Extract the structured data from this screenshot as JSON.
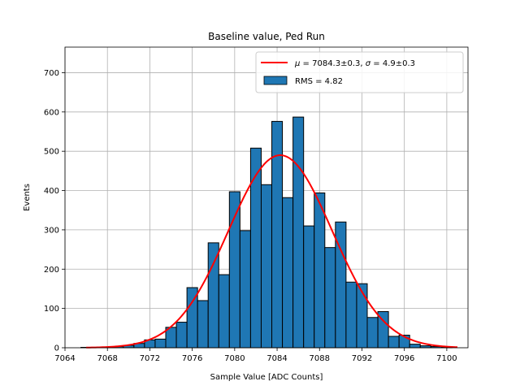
{
  "chart_data": {
    "type": "bar",
    "title": "Baseline value, Ped Run",
    "xlabel": "Sample Value [ADC Counts]",
    "ylabel": "Events",
    "xlim": [
      7064,
      7102
    ],
    "ylim": [
      0,
      765
    ],
    "xticks": [
      7064,
      7068,
      7072,
      7076,
      7080,
      7084,
      7088,
      7092,
      7096,
      7100
    ],
    "yticks": [
      0,
      100,
      200,
      300,
      400,
      500,
      600,
      700
    ],
    "grid": true,
    "legend_position": "top-right",
    "bin_width": 1,
    "bins": [
      {
        "x": 7066,
        "y": 1
      },
      {
        "x": 7067,
        "y": 1
      },
      {
        "x": 7068,
        "y": 2
      },
      {
        "x": 7069,
        "y": 3
      },
      {
        "x": 7070,
        "y": 6
      },
      {
        "x": 7071,
        "y": 11
      },
      {
        "x": 7072,
        "y": 20
      },
      {
        "x": 7073,
        "y": 22
      },
      {
        "x": 7074,
        "y": 52
      },
      {
        "x": 7075,
        "y": 65
      },
      {
        "x": 7076,
        "y": 153
      },
      {
        "x": 7077,
        "y": 120
      },
      {
        "x": 7078,
        "y": 267
      },
      {
        "x": 7079,
        "y": 186
      },
      {
        "x": 7080,
        "y": 397
      },
      {
        "x": 7081,
        "y": 298
      },
      {
        "x": 7082,
        "y": 508
      },
      {
        "x": 7083,
        "y": 415
      },
      {
        "x": 7084,
        "y": 576
      },
      {
        "x": 7085,
        "y": 382
      },
      {
        "x": 7086,
        "y": 587
      },
      {
        "x": 7087,
        "y": 310
      },
      {
        "x": 7088,
        "y": 394
      },
      {
        "x": 7089,
        "y": 255
      },
      {
        "x": 7090,
        "y": 320
      },
      {
        "x": 7091,
        "y": 167
      },
      {
        "x": 7092,
        "y": 163
      },
      {
        "x": 7093,
        "y": 77
      },
      {
        "x": 7094,
        "y": 92
      },
      {
        "x": 7095,
        "y": 29
      },
      {
        "x": 7096,
        "y": 32
      },
      {
        "x": 7097,
        "y": 9
      },
      {
        "x": 7098,
        "y": 5
      },
      {
        "x": 7099,
        "y": 3
      },
      {
        "x": 7100,
        "y": 1
      }
    ],
    "fit": {
      "mu": 7084.3,
      "sigma": 4.9,
      "amplitude": 490,
      "x_range": [
        7066,
        7101
      ]
    },
    "series": [
      {
        "name": "$\\mu = 7084.3{\\pm}0.3$, $\\sigma = 4.9{\\pm}0.3$",
        "type": "line",
        "color": "#ff0000"
      },
      {
        "name": "RMS = 4.82",
        "type": "bar",
        "color": "#1f77b4"
      }
    ]
  },
  "legend": {
    "fit_label_mu": "μ",
    "fit_label_mu_val": " = 7084.3±0.3, ",
    "fit_label_sigma": "σ",
    "fit_label_sigma_val": " = 4.9±0.3",
    "hist_label": "RMS = 4.82"
  },
  "colors": {
    "bar_fill": "#1f77b4",
    "bar_edge": "#000000",
    "fit_line": "#ff0000",
    "grid": "#b0b0b0"
  }
}
